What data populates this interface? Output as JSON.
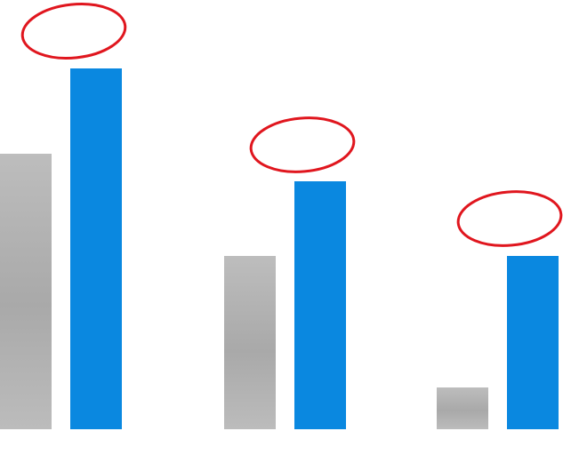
{
  "chart_data": {
    "type": "bar",
    "categories": [
      null,
      null,
      null
    ],
    "series": [
      {
        "color": "#b4b4b4",
        "values": [
          310,
          195,
          47
        ]
      },
      {
        "color": "#0a88e0",
        "values": [
          406,
          279,
          195
        ]
      }
    ],
    "ylim": [
      0,
      483
    ]
  }
}
